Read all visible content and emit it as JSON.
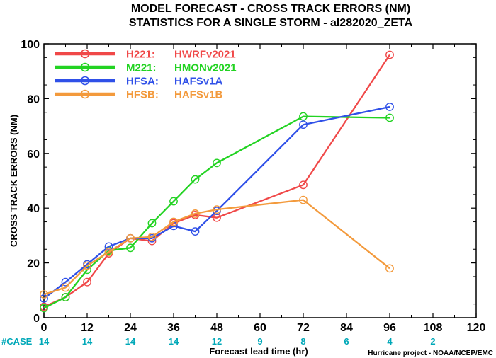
{
  "title_line1": "MODEL FORECAST - CROSS TRACK ERRORS (NM)",
  "title_line2": "STATISTICS FOR A SINGLE STORM - al282020_ZETA",
  "credit": "Hurricane project - NOAA/NCEP/EMC",
  "case_label": "#CASE",
  "colors": {
    "case_text": "#00a8b8",
    "axis": "#000000"
  },
  "chart_data": {
    "type": "line",
    "xlabel": "Forecast lead time (hr)",
    "ylabel": "CROSS TRACK ERRORS (NM)",
    "xlim": [
      0,
      120
    ],
    "ylim": [
      0,
      100
    ],
    "xticks": [
      0,
      12,
      24,
      36,
      48,
      60,
      72,
      84,
      96,
      108,
      120
    ],
    "yticks": [
      0,
      20,
      40,
      60,
      80,
      100
    ],
    "grid": false,
    "legend_position": "top-left",
    "cases": [
      {
        "x": 0,
        "n": "14"
      },
      {
        "x": 12,
        "n": "14"
      },
      {
        "x": 24,
        "n": "14"
      },
      {
        "x": 36,
        "n": "14"
      },
      {
        "x": 48,
        "n": "12"
      },
      {
        "x": 60,
        "n": "9"
      },
      {
        "x": 72,
        "n": "8"
      },
      {
        "x": 84,
        "n": "6"
      },
      {
        "x": 96,
        "n": "4"
      },
      {
        "x": 108,
        "n": "2"
      }
    ],
    "series": [
      {
        "code": "H221:",
        "name": "HWRFv2021",
        "color": "#f04848",
        "x": [
          0,
          6,
          12,
          18,
          24,
          30,
          36,
          42,
          48,
          72,
          96
        ],
        "y": [
          4,
          7.5,
          13,
          23.5,
          29,
          28,
          34.5,
          37.5,
          36.5,
          48.5,
          96
        ]
      },
      {
        "code": "M221:",
        "name": "HMONv2021",
        "color": "#22d322",
        "x": [
          0,
          6,
          12,
          18,
          24,
          30,
          36,
          42,
          48,
          72,
          96
        ],
        "y": [
          3.5,
          7.5,
          17.5,
          24.5,
          25.5,
          34.5,
          42.5,
          50.5,
          56.5,
          73.5,
          73
        ]
      },
      {
        "code": "HFSA:",
        "name": "HAFSv1A",
        "color": "#2f50e8",
        "x": [
          0,
          6,
          12,
          18,
          24,
          30,
          36,
          42,
          48,
          72,
          96
        ],
        "y": [
          7,
          13,
          19.5,
          26,
          29,
          29,
          33.5,
          31.5,
          39,
          70.5,
          77
        ]
      },
      {
        "code": "HFSB:",
        "name": "HAFSv1B",
        "color": "#f39a3c",
        "x": [
          0,
          6,
          12,
          18,
          24,
          30,
          36,
          42,
          48,
          72,
          96
        ],
        "y": [
          8.5,
          11,
          19,
          24,
          29,
          29.5,
          35,
          38,
          39.5,
          43,
          18
        ]
      }
    ]
  }
}
